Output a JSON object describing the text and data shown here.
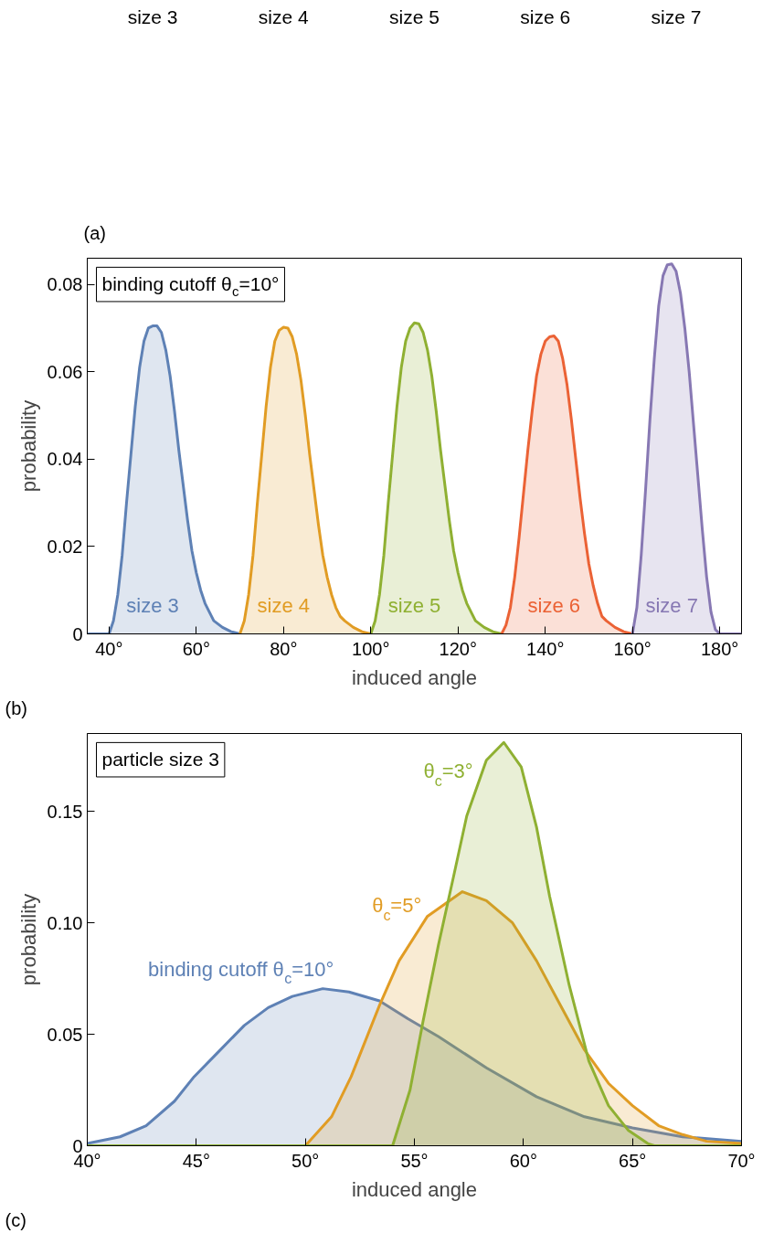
{
  "chart_data": [
    {
      "type": "other",
      "annotations": [
        "size 3",
        "size 4",
        "size 5",
        "size 6",
        "size 7",
        "(a)"
      ]
    },
    {
      "type": "area",
      "xlabel": "induced angle",
      "ylabel": "probability",
      "xlim": [
        35,
        185
      ],
      "ylim": [
        0,
        0.086
      ],
      "xticks": [
        {
          "value": 40,
          "label": "40°"
        },
        {
          "value": 60,
          "label": "60°"
        },
        {
          "value": 80,
          "label": "80°"
        },
        {
          "value": 100,
          "label": "100°"
        },
        {
          "value": 120,
          "label": "120°"
        },
        {
          "value": 140,
          "label": "140°"
        },
        {
          "value": 160,
          "label": "160°"
        },
        {
          "value": 180,
          "label": "180°"
        }
      ],
      "yticks": [
        0,
        0.02,
        0.04,
        0.06,
        0.08
      ],
      "grid": false,
      "annotations": [
        "binding cutoff θ$_{c}$=10°",
        "(b)"
      ],
      "series": [
        {
          "name": "size 3",
          "color": "#5e81b5",
          "x": [
            35,
            40,
            41,
            42,
            43,
            44,
            45,
            46,
            47,
            48,
            49,
            50,
            51,
            52,
            53,
            54,
            55,
            56,
            57,
            58,
            59,
            60,
            61,
            62,
            63,
            64,
            66,
            68,
            70
          ],
          "values": [
            0,
            0,
            0.003,
            0.009,
            0.018,
            0.03,
            0.041,
            0.052,
            0.061,
            0.067,
            0.07,
            0.0705,
            0.0705,
            0.069,
            0.065,
            0.059,
            0.051,
            0.042,
            0.034,
            0.026,
            0.019,
            0.014,
            0.01,
            0.007,
            0.005,
            0.003,
            0.0015,
            0.0005,
            0
          ]
        },
        {
          "name": "size 4",
          "color": "#e19c24",
          "x": [
            70,
            71,
            72,
            73,
            74,
            75,
            76,
            77,
            78,
            79,
            80,
            81,
            82,
            83,
            84,
            85,
            86,
            87,
            88,
            89,
            90,
            91,
            92,
            93,
            94,
            96,
            98,
            100
          ],
          "values": [
            0,
            0.003,
            0.009,
            0.018,
            0.03,
            0.041,
            0.052,
            0.061,
            0.067,
            0.0695,
            0.0702,
            0.07,
            0.068,
            0.064,
            0.058,
            0.05,
            0.041,
            0.033,
            0.025,
            0.018,
            0.013,
            0.009,
            0.006,
            0.004,
            0.003,
            0.0015,
            0.0005,
            0
          ]
        },
        {
          "name": "size 5",
          "color": "#8fb032",
          "x": [
            100,
            101,
            102,
            103,
            104,
            105,
            106,
            107,
            108,
            109,
            110,
            111,
            112,
            113,
            114,
            115,
            116,
            117,
            118,
            119,
            120,
            121,
            122,
            123,
            124,
            126,
            128,
            130
          ],
          "values": [
            0,
            0.003,
            0.009,
            0.018,
            0.03,
            0.041,
            0.052,
            0.061,
            0.067,
            0.07,
            0.0712,
            0.071,
            0.069,
            0.065,
            0.059,
            0.051,
            0.042,
            0.034,
            0.026,
            0.019,
            0.014,
            0.01,
            0.007,
            0.005,
            0.003,
            0.0015,
            0.0005,
            0
          ]
        },
        {
          "name": "size 6",
          "color": "#eb6235",
          "x": [
            130,
            131,
            132,
            133,
            134,
            135,
            136,
            137,
            138,
            139,
            140,
            141,
            142,
            143,
            144,
            145,
            146,
            147,
            148,
            149,
            150,
            151,
            152,
            153,
            154,
            156,
            158,
            160
          ],
          "values": [
            0,
            0.002,
            0.006,
            0.013,
            0.022,
            0.032,
            0.042,
            0.051,
            0.059,
            0.064,
            0.067,
            0.068,
            0.0682,
            0.067,
            0.063,
            0.057,
            0.049,
            0.04,
            0.031,
            0.023,
            0.016,
            0.011,
            0.007,
            0.004,
            0.003,
            0.0015,
            0.0005,
            0
          ]
        },
        {
          "name": "size 7",
          "color": "#8778b3",
          "x": [
            160,
            161,
            162,
            163,
            164,
            165,
            166,
            167,
            168,
            169,
            170,
            171,
            172,
            173,
            174,
            175,
            176,
            177,
            178,
            179,
            180,
            185
          ],
          "values": [
            0,
            0.006,
            0.018,
            0.033,
            0.049,
            0.063,
            0.075,
            0.082,
            0.0845,
            0.0847,
            0.083,
            0.078,
            0.07,
            0.06,
            0.048,
            0.036,
            0.024,
            0.013,
            0.005,
            0.001,
            0,
            0
          ]
        }
      ]
    },
    {
      "type": "area",
      "xlabel": "induced angle",
      "ylabel": "probability",
      "xlim": [
        40,
        70
      ],
      "ylim": [
        0,
        0.185
      ],
      "xticks": [
        {
          "value": 40,
          "label": "40°"
        },
        {
          "value": 45,
          "label": "45°"
        },
        {
          "value": 50,
          "label": "50°"
        },
        {
          "value": 55,
          "label": "55°"
        },
        {
          "value": 60,
          "label": "60°"
        },
        {
          "value": 65,
          "label": "65°"
        },
        {
          "value": 70,
          "label": "70°"
        }
      ],
      "yticks": [
        0,
        0.05,
        {
          "value": 0.1,
          "label": "0.10"
        },
        0.15
      ],
      "grid": false,
      "annotations": [
        "particle size 3",
        "(c)"
      ],
      "series": [
        {
          "name": "binding cutoff θ$_{c}$=10°",
          "color": "#5e81b5",
          "x": [
            40,
            41.5,
            42.7,
            44,
            44.9,
            46,
            47.2,
            48.3,
            49.4,
            50.8,
            52,
            53.4,
            54.7,
            56.1,
            58.3,
            60.6,
            62.8,
            65,
            67.3,
            70
          ],
          "values": [
            0.001,
            0.004,
            0.009,
            0.02,
            0.031,
            0.042,
            0.054,
            0.062,
            0.067,
            0.0705,
            0.069,
            0.065,
            0.057,
            0.049,
            0.035,
            0.022,
            0.013,
            0.008,
            0.004,
            0.002
          ]
        },
        {
          "name": "θ$_{c}$=5°",
          "color": "#e19c24",
          "x": [
            40,
            50,
            51.2,
            52.1,
            53.4,
            54.3,
            55.6,
            57.2,
            58.3,
            59.5,
            60.6,
            61.7,
            62.8,
            63.9,
            65,
            66.2,
            67.3,
            68.4,
            70
          ],
          "values": [
            0,
            0,
            0.013,
            0.031,
            0.063,
            0.083,
            0.103,
            0.114,
            0.11,
            0.1,
            0.083,
            0.063,
            0.043,
            0.028,
            0.018,
            0.009,
            0.005,
            0.002,
            0.001
          ]
        },
        {
          "name": "θ$_{c}$=3°",
          "color": "#8fb032",
          "x": [
            40,
            54,
            54.8,
            55.4,
            56.1,
            56.8,
            57.4,
            58.3,
            59.1,
            59.9,
            60.6,
            61.2,
            62.1,
            63,
            63.9,
            64.8,
            65.7,
            66,
            70
          ],
          "values": [
            0,
            0,
            0.025,
            0.056,
            0.09,
            0.121,
            0.148,
            0.173,
            0.181,
            0.17,
            0.143,
            0.112,
            0.072,
            0.038,
            0.018,
            0.007,
            0.001,
            0,
            0
          ]
        }
      ]
    }
  ]
}
